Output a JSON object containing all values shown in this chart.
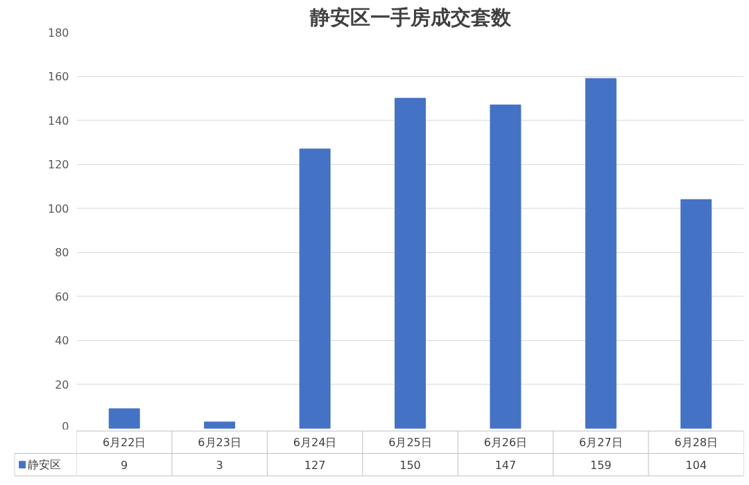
{
  "chart_data": {
    "type": "bar",
    "title": "静安区一手房成交套数",
    "categories": [
      "6月22日",
      "6月23日",
      "6月24日",
      "6月25日",
      "6月26日",
      "6月27日",
      "6月28日"
    ],
    "series": [
      {
        "name": "静安区",
        "color": "#4472c4",
        "values": [
          9,
          3,
          127,
          150,
          147,
          159,
          104
        ]
      }
    ],
    "ylim": [
      0,
      180
    ],
    "yticks": [
      0,
      20,
      40,
      60,
      80,
      100,
      120,
      140,
      160,
      180
    ],
    "grid": "y",
    "data_labels": true,
    "legend": "bottom"
  }
}
